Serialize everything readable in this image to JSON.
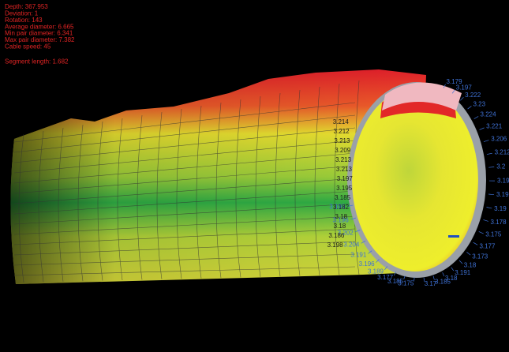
{
  "info": {
    "lines": [
      "Depth: 367.953",
      "Deviation: 1",
      "Rotation: 143",
      "Average diameter: 6.665",
      "Min pair diameter: 6.341",
      "Max pair diameter: 7.382",
      "Cable speed: 45"
    ],
    "segment_length": "Segment length: 1.682"
  },
  "ring_labels": {
    "outer": [
      "3.179",
      "3.197",
      "3.222",
      "3.23",
      "3.224",
      "3.221",
      "3.206",
      "3.212",
      "3.2",
      "3.19",
      "3.19",
      "3.19",
      "3.178",
      "3.175",
      "3.177",
      "3.173",
      "3.18",
      "3.191",
      "3.18",
      "3.185",
      "3.17",
      "3.175",
      "3.185",
      "3.177",
      "3.189",
      "3.196",
      "3.191",
      "3.204",
      "3.202",
      "3.196",
      "3.199"
    ],
    "inner": [
      "3.214",
      "3.212",
      "3.213",
      "3.209",
      "3.213",
      "3.213",
      "3.197",
      "3.195",
      "3.185",
      "3.182",
      "3.18",
      "3.18",
      "3.186",
      "3.198"
    ]
  }
}
